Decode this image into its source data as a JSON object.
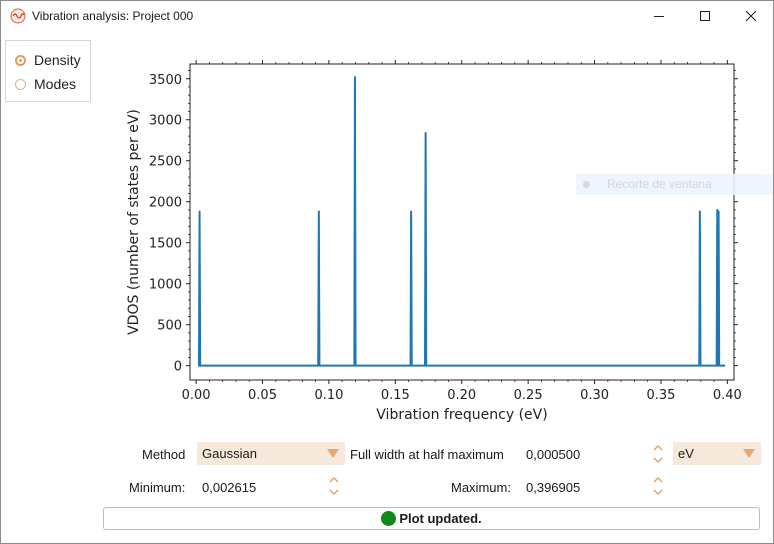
{
  "window": {
    "title": "Vibration analysis: Project 000",
    "controls": [
      "minimize",
      "maximize",
      "close"
    ]
  },
  "view_selector": {
    "options": [
      {
        "label": "Density",
        "selected": true
      },
      {
        "label": "Modes",
        "selected": false
      }
    ]
  },
  "tooltip_ghost": {
    "text": "Recorte de ventana"
  },
  "chart_data": {
    "type": "line",
    "xlabel": "Vibration frequency (eV)",
    "ylabel": "VDOS (number of states per eV)",
    "xlim": [
      -0.0046,
      0.405
    ],
    "ylim": [
      -175,
      3680
    ],
    "xticks": [
      0.0,
      0.05,
      0.1,
      0.15,
      0.2,
      0.25,
      0.3,
      0.35,
      0.4
    ],
    "xtick_labels": [
      "0.00",
      "0.05",
      "0.10",
      "0.15",
      "0.20",
      "0.25",
      "0.30",
      "0.35",
      "0.40"
    ],
    "yticks": [
      0,
      500,
      1000,
      1500,
      2000,
      2500,
      3000,
      3500
    ],
    "ytick_labels": [
      "0",
      "500",
      "1000",
      "1500",
      "2000",
      "2500",
      "3000",
      "3500"
    ],
    "baseline_range": [
      0.0014,
      0.3983
    ],
    "peaks": [
      {
        "x": 0.0026,
        "y": 1880
      },
      {
        "x": 0.0924,
        "y": 1880
      },
      {
        "x": 0.1196,
        "y": 3520
      },
      {
        "x": 0.1619,
        "y": 1880
      },
      {
        "x": 0.1728,
        "y": 2840
      },
      {
        "x": 0.3793,
        "y": 1880
      },
      {
        "x": 0.3924,
        "y": 1900
      },
      {
        "x": 0.3934,
        "y": 1880
      }
    ],
    "line_color": "#1f77b4",
    "grid": false,
    "series": [
      {
        "values": []
      }
    ]
  },
  "controls": {
    "method_label": "Method",
    "method_value": "Gaussian",
    "fwhm_label": "Full width at half maximum",
    "fwhm_value": "0,000500",
    "unit_value": "eV",
    "minimum_label": "Minimum:",
    "minimum_value": "0,002615",
    "maximum_label": "Maximum:",
    "maximum_value": "0,396905"
  },
  "status": {
    "text": "Plot updated.",
    "indicator_color": "#0f8a19"
  },
  "colors": {
    "accent": "#e39a5c",
    "select_bg": "#f7e8dc",
    "status_border": "#e8b86a"
  }
}
